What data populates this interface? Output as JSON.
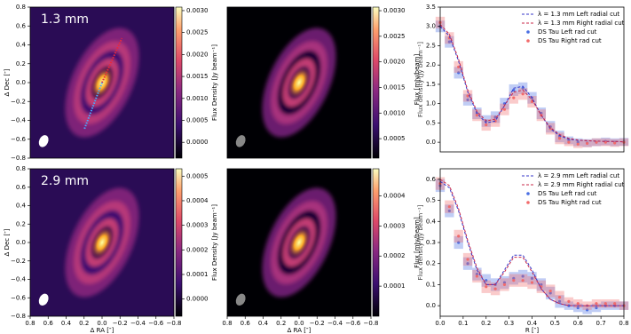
{
  "chart_data": [
    {
      "type": "image",
      "label": "1.3 mm",
      "ylabel": "Δ Dec [″]",
      "xlim": [
        0.8,
        -0.8
      ],
      "ylim": [
        -0.8,
        0.8
      ],
      "yticks": [
        0.8,
        0.6,
        0.4,
        0.2,
        {
          "value": 0,
          "label": "0.0"
        },
        {
          "value": -0.2,
          "label": "−0.2"
        },
        {
          "value": -0.4,
          "label": "−0.4"
        },
        {
          "value": -0.6,
          "label": "−0.6"
        },
        {
          "value": -0.8,
          "label": "−0.8"
        }
      ],
      "colorbar": {
        "lim": [
          -0.00036,
          0.00308
        ],
        "label": "Flux Density [Jy beam⁻¹]",
        "ticks": [
          {
            "value": 0,
            "label": "0.0000"
          },
          {
            "value": 0.0005,
            "label": "0.0005"
          },
          {
            "value": 0.001,
            "label": "0.0010"
          },
          {
            "value": 0.0015,
            "label": "0.0015"
          },
          {
            "value": 0.002,
            "label": "0.0020"
          },
          {
            "value": 0.0025,
            "label": "0.0025"
          },
          {
            "value": 0.003,
            "label": "0.0030"
          }
        ]
      }
    },
    {
      "type": "image",
      "xlim": [
        0.8,
        -0.8
      ],
      "ylim": [
        -0.8,
        0.8
      ],
      "colorbar": {
        "lim": [
          0.00012,
          0.00307
        ],
        "ticks": [
          {
            "value": 0.0005,
            "label": "0.0005"
          },
          {
            "value": 0.001,
            "label": "0.0010"
          },
          {
            "value": 0.0015,
            "label": "0.0015"
          },
          {
            "value": 0.002,
            "label": "0.0020"
          },
          {
            "value": 0.0025,
            "label": "0.0025"
          },
          {
            "value": 0.003,
            "label": "0.0030"
          }
        ]
      }
    },
    {
      "type": "line",
      "ylabel": "Flux [mJy/beam]",
      "ylabel_behind": "Flux density [Jy beam⁻¹]",
      "legend": "upper right",
      "xlim": [
        0,
        0.8
      ],
      "ylim": [
        -0.25,
        3.5
      ],
      "yticks": [
        {
          "value": 0,
          "label": "0.0"
        },
        0.5,
        {
          "value": 1,
          "label": "1.0"
        },
        1.5,
        {
          "value": 2,
          "label": "2.0"
        },
        2.5,
        {
          "value": 3,
          "label": "3.0"
        },
        3.5
      ],
      "x": [
        0,
        0.04,
        0.08,
        0.12,
        0.16,
        0.2,
        0.24,
        0.28,
        0.32,
        0.36,
        0.4,
        0.44,
        0.48,
        0.52,
        0.56,
        0.6,
        0.64,
        0.68,
        0.72,
        0.76,
        0.8
      ],
      "series": [
        {
          "name": "λ = 1.3 mm Left radial cut",
          "color": "#3535c8",
          "style": "dashed",
          "values": [
            3.0,
            2.75,
            2.1,
            1.3,
            0.75,
            0.5,
            0.55,
            0.95,
            1.4,
            1.45,
            1.15,
            0.7,
            0.35,
            0.17,
            0.08,
            0.05,
            0.04,
            0.03,
            0.02,
            0.02,
            0.01
          ]
        },
        {
          "name": "λ = 1.3 mm Right radial cut",
          "color": "#c8284a",
          "style": "dashed",
          "values": [
            3.05,
            2.8,
            2.15,
            1.35,
            0.8,
            0.55,
            0.6,
            0.95,
            1.3,
            1.35,
            1.1,
            0.7,
            0.38,
            0.2,
            0.1,
            0.06,
            0.04,
            0.03,
            0.02,
            0.02,
            0.01
          ]
        },
        {
          "name": "DS Tau Left rad cut",
          "color": "#4a6fe3",
          "style": "points",
          "values": [
            3.0,
            2.6,
            1.8,
            1.1,
            0.75,
            0.55,
            0.65,
            1.0,
            1.35,
            1.4,
            1.15,
            0.75,
            0.4,
            0.15,
            0.05,
            0.0,
            -0.02,
            0.0,
            0.02,
            0.0,
            0.01
          ],
          "errors": [
            0.15,
            0.15,
            0.15,
            0.15,
            0.15,
            0.15,
            0.15,
            0.15,
            0.15,
            0.15,
            0.15,
            0.15,
            0.15,
            0.15,
            0.1,
            0.1,
            0.1,
            0.1,
            0.1,
            0.1,
            0.1
          ]
        },
        {
          "name": "DS Tau Right rad cut",
          "color": "#f26b6b",
          "style": "points",
          "values": [
            3.1,
            2.7,
            1.95,
            1.2,
            0.7,
            0.45,
            0.55,
            0.85,
            1.15,
            1.25,
            1.05,
            0.7,
            0.35,
            0.1,
            0.0,
            -0.05,
            -0.03,
            0.0,
            0.0,
            -0.02,
            0.0
          ],
          "errors": [
            0.15,
            0.15,
            0.15,
            0.15,
            0.15,
            0.15,
            0.15,
            0.15,
            0.15,
            0.15,
            0.15,
            0.15,
            0.15,
            0.15,
            0.1,
            0.1,
            0.1,
            0.1,
            0.1,
            0.1,
            0.1
          ]
        }
      ]
    },
    {
      "type": "image",
      "label": "2.9 mm",
      "xlabel": "Δ RA [″]",
      "ylabel": "Δ Dec [″]",
      "xlim": [
        0.8,
        -0.8
      ],
      "ylim": [
        -0.8,
        0.8
      ],
      "xticks": [
        0.8,
        0.6,
        0.4,
        0.2,
        {
          "value": 0,
          "label": "0.0"
        },
        {
          "value": -0.2,
          "label": "−0.2"
        },
        {
          "value": -0.4,
          "label": "−0.4"
        },
        {
          "value": -0.6,
          "label": "−0.6"
        },
        {
          "value": -0.8,
          "label": "−0.8"
        }
      ],
      "yticks": [
        0.8,
        0.6,
        0.4,
        0.2,
        {
          "value": 0,
          "label": "0.0"
        },
        {
          "value": -0.2,
          "label": "−0.2"
        },
        {
          "value": -0.4,
          "label": "−0.4"
        },
        {
          "value": -0.6,
          "label": "−0.6"
        },
        {
          "value": -0.8,
          "label": "−0.8"
        }
      ],
      "colorbar": {
        "lim": [
          -7e-05,
          0.00053
        ],
        "label": "Flux Density [Jy beam⁻¹]",
        "ticks": [
          {
            "value": 0,
            "label": "0.0000"
          },
          {
            "value": 0.0001,
            "label": "0.0001"
          },
          {
            "value": 0.0002,
            "label": "0.0002"
          },
          {
            "value": 0.0003,
            "label": "0.0003"
          },
          {
            "value": 0.0004,
            "label": "0.0004"
          },
          {
            "value": 0.0005,
            "label": "0.0005"
          }
        ]
      }
    },
    {
      "type": "image",
      "xlabel": "Δ RA [″]",
      "xlim": [
        0.8,
        -0.8
      ],
      "ylim": [
        -0.8,
        0.8
      ],
      "xticks": [
        0.8,
        0.6,
        0.4,
        0.2,
        {
          "value": 0,
          "label": "0.0"
        },
        {
          "value": -0.2,
          "label": "−0.2"
        },
        {
          "value": -0.4,
          "label": "−0.4"
        },
        {
          "value": -0.6,
          "label": "−0.6"
        },
        {
          "value": -0.8,
          "label": "−0.8"
        }
      ],
      "colorbar": {
        "lim": [
          0,
          0.00049
        ],
        "ticks": [
          {
            "value": 0.0001,
            "label": "0.0001"
          },
          {
            "value": 0.0002,
            "label": "0.0002"
          },
          {
            "value": 0.0003,
            "label": "0.0003"
          },
          {
            "value": 0.0004,
            "label": "0.0004"
          }
        ]
      }
    },
    {
      "type": "line",
      "xlabel": "R [″]",
      "ylabel": "Flux [mJy/beam]",
      "ylabel_behind": "Flux density [Jy beam⁻¹]",
      "legend": "upper right",
      "xlim": [
        0,
        0.8
      ],
      "ylim": [
        -0.05,
        0.65
      ],
      "xticks": [
        {
          "value": 0,
          "label": "0.0"
        },
        0.1,
        0.2,
        0.3,
        0.4,
        0.5,
        0.6,
        0.7,
        0.8
      ],
      "yticks": [
        {
          "value": 0,
          "label": "0.0"
        },
        0.1,
        0.2,
        0.3,
        0.4,
        0.5,
        0.6
      ],
      "x": [
        0,
        0.04,
        0.08,
        0.12,
        0.16,
        0.2,
        0.24,
        0.28,
        0.32,
        0.36,
        0.4,
        0.44,
        0.48,
        0.52,
        0.56,
        0.6,
        0.64,
        0.68,
        0.72,
        0.76,
        0.8
      ],
      "series": [
        {
          "name": "λ = 2.9 mm Left radial cut",
          "color": "#3535c8",
          "style": "dashed",
          "values": [
            0.59,
            0.56,
            0.45,
            0.3,
            0.17,
            0.1,
            0.1,
            0.17,
            0.24,
            0.24,
            0.17,
            0.08,
            0.03,
            0.01,
            0.0,
            0.0,
            0.0,
            0.0,
            0.0,
            0.0,
            0.0
          ]
        },
        {
          "name": "λ = 2.9 mm Right radial cut",
          "color": "#c8284a",
          "style": "dashed",
          "values": [
            0.6,
            0.57,
            0.46,
            0.31,
            0.18,
            0.1,
            0.1,
            0.16,
            0.23,
            0.23,
            0.16,
            0.08,
            0.03,
            0.01,
            0.0,
            0.0,
            0.0,
            0.0,
            0.0,
            0.0,
            0.0
          ]
        },
        {
          "name": "DS Tau Left rad cut",
          "color": "#4a6fe3",
          "style": "points",
          "values": [
            0.57,
            0.45,
            0.3,
            0.2,
            0.15,
            0.12,
            0.1,
            0.11,
            0.13,
            0.14,
            0.13,
            0.1,
            0.06,
            0.02,
            0.0,
            -0.01,
            -0.02,
            -0.01,
            0.0,
            0.0,
            0.0
          ],
          "errors": [
            0.03,
            0.03,
            0.03,
            0.03,
            0.03,
            0.03,
            0.03,
            0.03,
            0.03,
            0.03,
            0.03,
            0.03,
            0.03,
            0.03,
            0.02,
            0.02,
            0.02,
            0.02,
            0.02,
            0.02,
            0.02
          ]
        },
        {
          "name": "DS Tau Right rad cut",
          "color": "#f26b6b",
          "style": "points",
          "values": [
            0.58,
            0.47,
            0.33,
            0.22,
            0.14,
            0.09,
            0.08,
            0.1,
            0.12,
            0.12,
            0.11,
            0.09,
            0.07,
            0.04,
            0.02,
            0.01,
            0.0,
            0.01,
            0.01,
            0.01,
            0.0
          ],
          "errors": [
            0.03,
            0.03,
            0.03,
            0.03,
            0.03,
            0.03,
            0.03,
            0.03,
            0.03,
            0.03,
            0.03,
            0.03,
            0.03,
            0.03,
            0.02,
            0.02,
            0.02,
            0.02,
            0.02,
            0.02,
            0.02
          ]
        }
      ]
    }
  ]
}
